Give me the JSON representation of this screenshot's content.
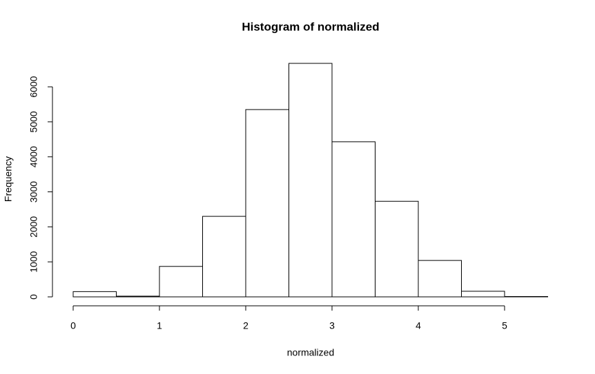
{
  "chart_data": {
    "type": "histogram",
    "title": "Histogram of normalized",
    "xlabel": "normalized",
    "ylabel": "Frequency",
    "bins": [
      0,
      0.5,
      1,
      1.5,
      2,
      2.5,
      3,
      3.5,
      4,
      4.5,
      5,
      5.5
    ],
    "counts": [
      150,
      20,
      870,
      2300,
      5350,
      6670,
      4430,
      2730,
      1040,
      160,
      10
    ],
    "color": "#ffffff",
    "edge_color": "#000000",
    "xlim": [
      0,
      5.5
    ],
    "xticks": [
      0,
      1,
      2,
      3,
      4,
      5
    ],
    "ylim": [
      0,
      6670
    ],
    "yticks": [
      0,
      1000,
      2000,
      3000,
      4000,
      5000,
      6000
    ]
  }
}
